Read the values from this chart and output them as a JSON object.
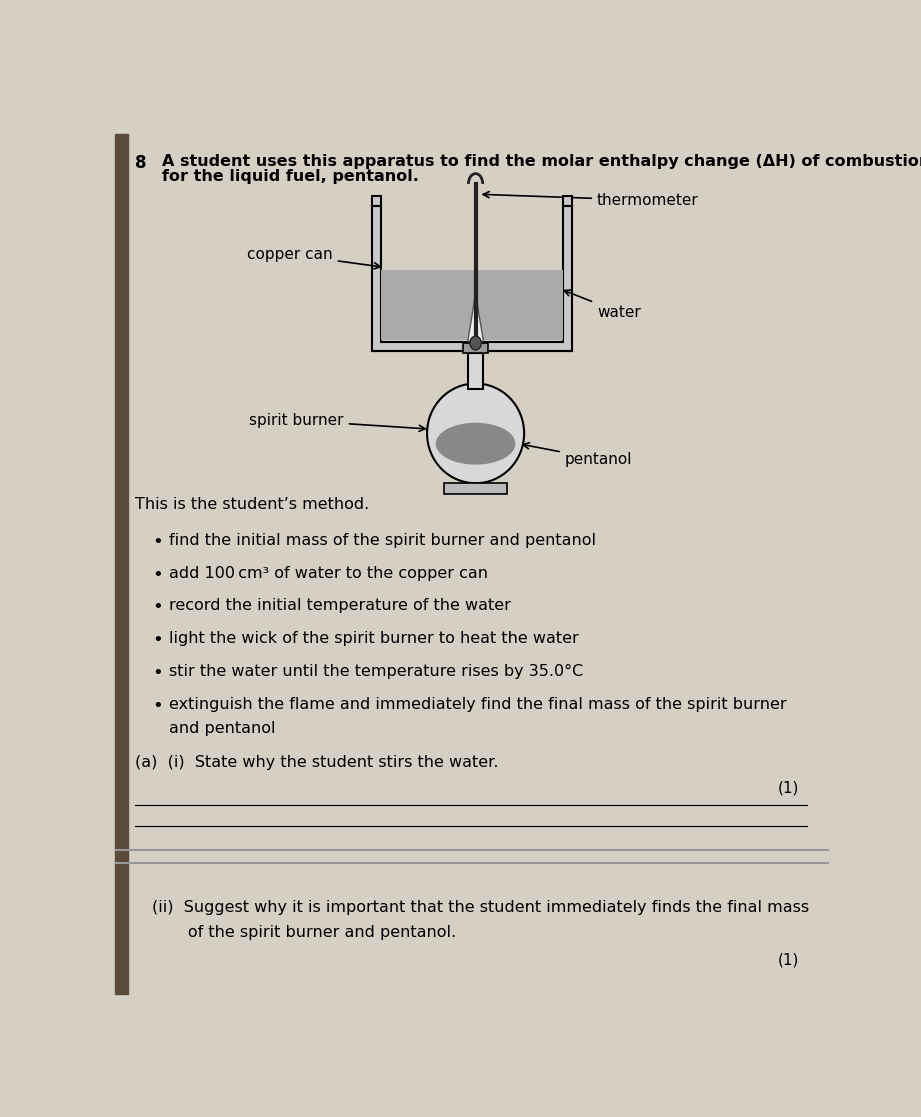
{
  "bg_color": "#d6cfc4",
  "text_color": "#000000",
  "question_number": "8",
  "title_line1": "A student uses this apparatus to find the molar enthalpy change (ΔH) of combustion",
  "title_line2": "for the liquid fuel, pentanol.",
  "label_thermometer": "thermometer",
  "label_copper_can": "copper can",
  "label_water": "water",
  "label_spirit_burner": "spirit burner",
  "label_pentanol": "pentanol",
  "method_header": "This is the student’s method.",
  "bullet_points": [
    "find the initial mass of the spirit burner and pentanol",
    "add 100 cm³ of water to the copper can",
    "record the initial temperature of the water",
    "light the wick of the spirit burner to heat the water",
    "stir the water until the temperature rises by 35.0°C",
    "extinguish the flame and immediately find the final mass of the spirit burner\nand pentanol"
  ],
  "part_a_i_label": "(a)  (i)  State why the student stirs the water.",
  "part_a_ii_label_1": "(ii)  Suggest why it is important that the student immediately finds the final mass",
  "part_a_ii_label_2": "       of the spirit burner and pentanol.",
  "mark_1": "(1)",
  "mark_2": "(1)"
}
